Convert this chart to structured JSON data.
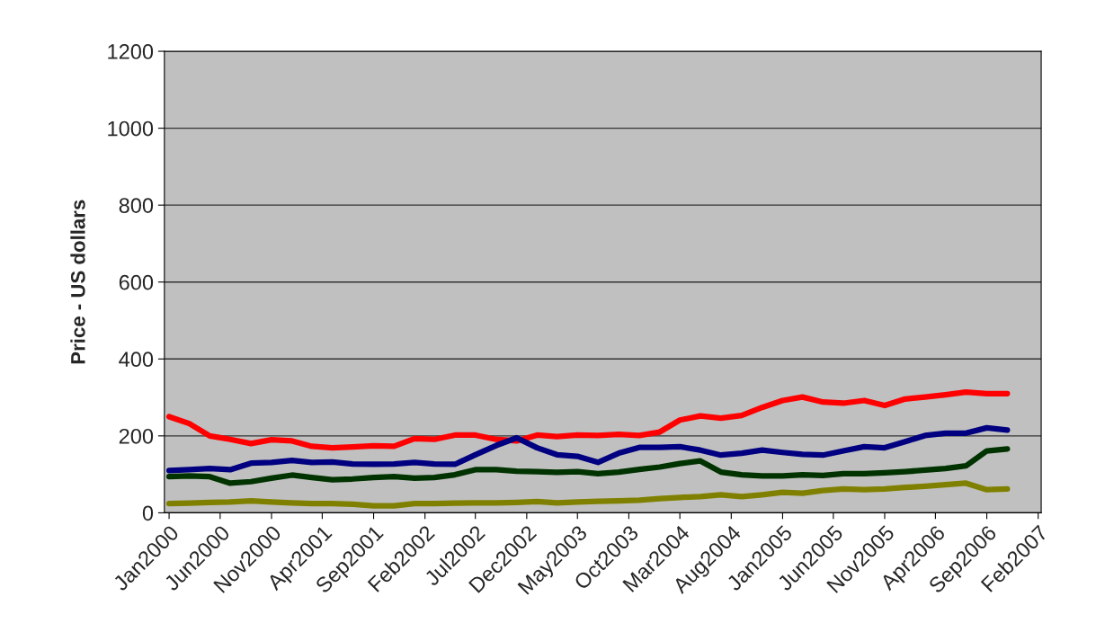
{
  "chart_data": {
    "type": "line",
    "ylabel": "Price - US dollars",
    "x": [
      "2000-01",
      "2000-03",
      "2000-05",
      "2000-07",
      "2000-09",
      "2000-11",
      "2001-01",
      "2001-03",
      "2001-05",
      "2001-07",
      "2001-09",
      "2001-11",
      "2002-01",
      "2002-03",
      "2002-05",
      "2002-07",
      "2002-09",
      "2002-11",
      "2003-01",
      "2003-03",
      "2003-05",
      "2003-07",
      "2003-09",
      "2003-11",
      "2004-01",
      "2004-03",
      "2004-05",
      "2004-07",
      "2004-09",
      "2004-11",
      "2005-01",
      "2005-03",
      "2005-05",
      "2005-07",
      "2005-09",
      "2005-11",
      "2006-01",
      "2006-03",
      "2006-05",
      "2006-07",
      "2006-09",
      "2006-11"
    ],
    "series": [
      {
        "color": "#ff0000",
        "values": [
          250,
          232,
          200,
          191,
          180,
          190,
          187,
          173,
          169,
          171,
          174,
          173,
          193,
          191,
          202,
          202,
          191,
          187,
          202,
          198,
          202,
          201,
          204,
          201,
          210,
          241,
          252,
          246,
          253,
          274,
          292,
          301,
          288,
          285,
          292,
          279,
          296,
          301,
          307,
          314,
          310,
          310
        ]
      },
      {
        "color": "#000080",
        "values": [
          110,
          112,
          115,
          112,
          129,
          131,
          136,
          131,
          132,
          127,
          126,
          127,
          131,
          127,
          126,
          151,
          175,
          195,
          169,
          151,
          147,
          131,
          155,
          170,
          170,
          172,
          163,
          150,
          155,
          163,
          157,
          152,
          150,
          161,
          172,
          169,
          185,
          201,
          207,
          207,
          221,
          215
        ]
      },
      {
        "color": "#003300",
        "values": [
          94,
          96,
          94,
          77,
          81,
          90,
          98,
          92,
          86,
          88,
          92,
          94,
          90,
          92,
          99,
          112,
          112,
          108,
          107,
          105,
          107,
          102,
          106,
          113,
          119,
          128,
          135,
          106,
          99,
          96,
          96,
          99,
          97,
          102,
          102,
          104,
          107,
          111,
          115,
          122,
          161,
          166
        ]
      },
      {
        "color": "#808000",
        "values": [
          24,
          25,
          27,
          28,
          31,
          28,
          26,
          24,
          24,
          22,
          18,
          18,
          24,
          24,
          25,
          26,
          26,
          27,
          29,
          26,
          28,
          30,
          31,
          33,
          37,
          40,
          42,
          47,
          42,
          47,
          53,
          51,
          58,
          62,
          60,
          62,
          66,
          69,
          73,
          77,
          60,
          62
        ]
      }
    ],
    "xlim": [
      "1999-12-18",
      "2007-02-10"
    ],
    "xticks": [
      {
        "value": "2000-01",
        "label": "Jan2000"
      },
      {
        "value": "2000-06",
        "label": "Jun2000"
      },
      {
        "value": "2000-11",
        "label": "Nov2000"
      },
      {
        "value": "2001-04",
        "label": "Apr2001"
      },
      {
        "value": "2001-09",
        "label": "Sep2001"
      },
      {
        "value": "2002-02",
        "label": "Feb2002"
      },
      {
        "value": "2002-07",
        "label": "Jul2002"
      },
      {
        "value": "2002-12",
        "label": "Dec2002"
      },
      {
        "value": "2003-05",
        "label": "May2003"
      },
      {
        "value": "2003-10",
        "label": "Oct2003"
      },
      {
        "value": "2004-03",
        "label": "Mar2004"
      },
      {
        "value": "2004-08",
        "label": "Aug2004"
      },
      {
        "value": "2005-01",
        "label": "Jan2005"
      },
      {
        "value": "2005-06",
        "label": "Jun2005"
      },
      {
        "value": "2005-11",
        "label": "Nov2005"
      },
      {
        "value": "2006-04",
        "label": "Apr2006"
      },
      {
        "value": "2006-09",
        "label": "Sep2006"
      },
      {
        "value": "2007-02",
        "label": "Feb2007"
      }
    ],
    "ylim": [
      0,
      1200
    ],
    "yticks": [
      0,
      200,
      400,
      600,
      800,
      1000,
      1200
    ],
    "grid": "y",
    "legend": false,
    "marker": "none",
    "line_style": "solid"
  }
}
